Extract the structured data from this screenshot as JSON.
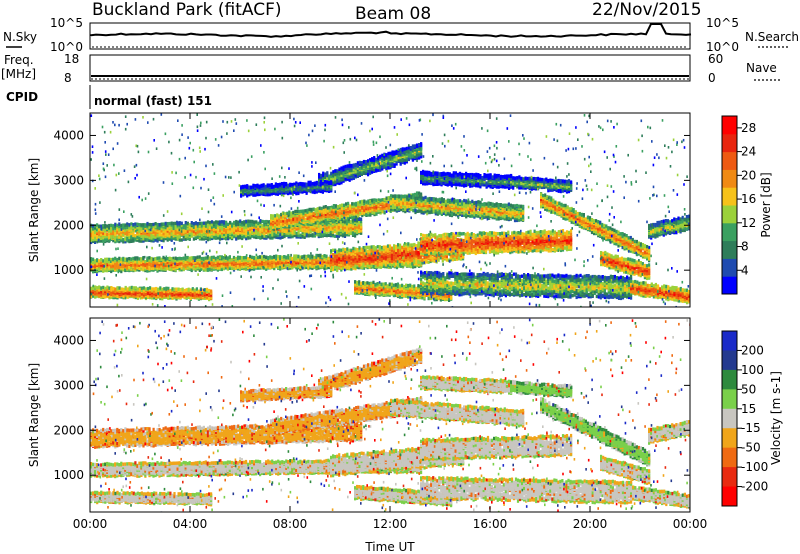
{
  "header": {
    "station": "Buckland Park (fitACF)",
    "beam": "Beam 08",
    "date": "22/Nov/2015"
  },
  "noise_panel": {
    "left_label": "N.Sky",
    "right_label": "N.Search",
    "left_ticks": [
      "10^5",
      "10^0"
    ],
    "right_ticks": [
      "10^5",
      "10^0"
    ]
  },
  "freq_panel": {
    "left_label_1": "Freq.",
    "left_label_2": "[MHz]",
    "right_label": "Nave",
    "left_ticks": [
      "18",
      "8"
    ],
    "right_ticks": [
      "60",
      "0"
    ]
  },
  "cpid": {
    "label": "CPID",
    "program": "normal (fast) 151"
  },
  "colors": {
    "power_scale": [
      "#0000ff",
      "#1f4bb0",
      "#2e7d5a",
      "#3aa060",
      "#9bd13a",
      "#f6c21a",
      "#f08a14",
      "#ee5a12",
      "#e8250e",
      "#ff0000"
    ],
    "velocity_scale": [
      "#ff0000",
      "#e82a10",
      "#ef6a12",
      "#f0a51a",
      "#c8c6c0",
      "#7ad04a",
      "#2e8a3e",
      "#243a8f",
      "#1a2ac8"
    ]
  },
  "chart_data": [
    {
      "type": "heatmap",
      "title": "Power",
      "xlabel": "Time UT",
      "ylabel": "Slant Range [km]",
      "x_ticks": [
        "00:00",
        "04:00",
        "08:00",
        "12:00",
        "16:00",
        "20:00",
        "00:00"
      ],
      "y_ticks": [
        1000,
        2000,
        3000,
        4000
      ],
      "xlim": [
        "00:00",
        "24:00"
      ],
      "ylim": [
        180,
        4500
      ],
      "colorbar": {
        "label": "Power [dB]",
        "ticks": [
          4,
          8,
          12,
          16,
          20,
          24,
          28
        ],
        "range": [
          0,
          30
        ]
      }
    },
    {
      "type": "heatmap",
      "title": "Velocity",
      "xlabel": "Time UT",
      "ylabel": "Slant Range [km]",
      "x_ticks": [
        "00:00",
        "04:00",
        "08:00",
        "12:00",
        "16:00",
        "20:00",
        "00:00"
      ],
      "y_ticks": [
        1000,
        2000,
        3000,
        4000
      ],
      "xlim": [
        "00:00",
        "24:00"
      ],
      "ylim": [
        180,
        4500
      ],
      "colorbar": {
        "label": "Velocity [m s-1]",
        "ticks": [
          200,
          100,
          50,
          15,
          -15,
          -50,
          -100,
          -200
        ]
      }
    }
  ]
}
